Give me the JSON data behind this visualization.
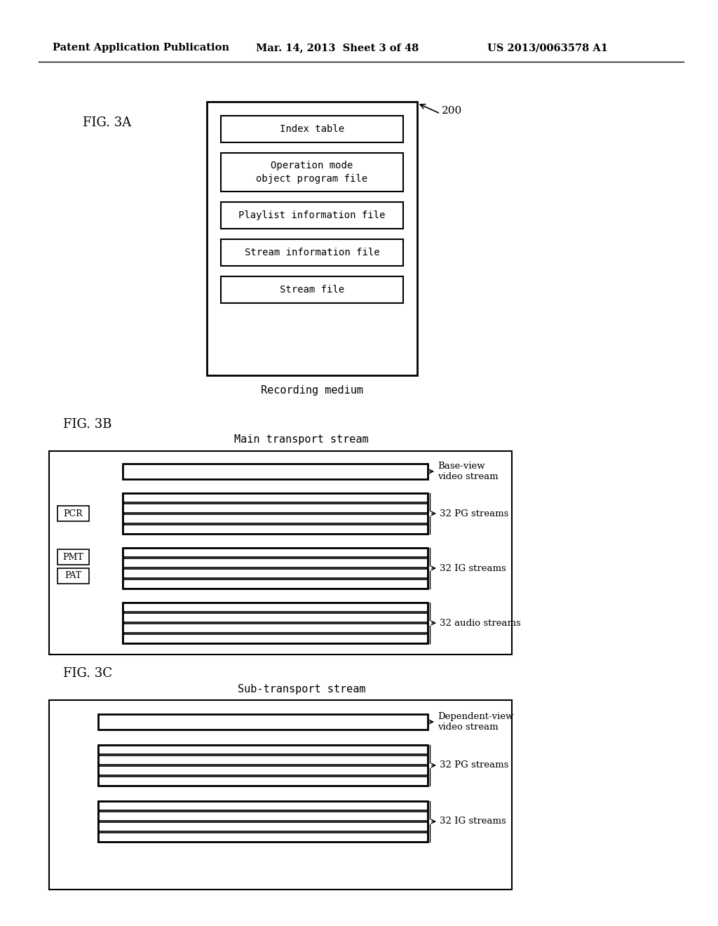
{
  "bg_color": "#ffffff",
  "header_left": "Patent Application Publication",
  "header_mid": "Mar. 14, 2013  Sheet 3 of 48",
  "header_right": "US 2013/0063578 A1",
  "fig3a_label": "FIG. 3A",
  "fig3a_ref": "200",
  "fig3a_boxes": [
    "Index table",
    "Operation mode\nobject program file",
    "Playlist information file",
    "Stream information file",
    "Stream file"
  ],
  "fig3a_caption": "Recording medium",
  "fig3b_label": "FIG. 3B",
  "fig3b_title": "Main transport stream",
  "fig3b_side_labels": [
    "PCR",
    "PMT",
    "PAT"
  ],
  "fig3b_group_labels": [
    "Base-view\nvideo stream",
    "32 PG streams",
    "32 IG streams",
    "32 audio streams"
  ],
  "fig3c_label": "FIG. 3C",
  "fig3c_title": "Sub-transport stream",
  "fig3c_group_labels": [
    "Dependent-view\nvideo stream",
    "32 PG streams",
    "32 IG streams"
  ]
}
